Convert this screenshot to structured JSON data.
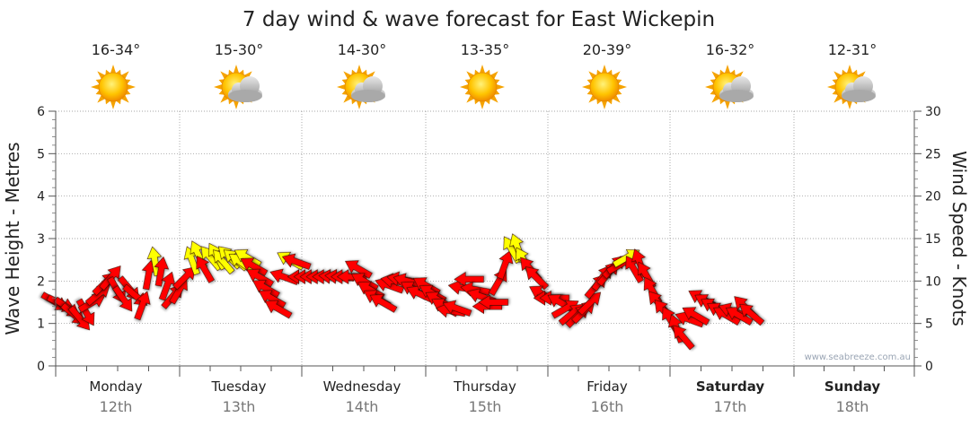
{
  "chart_data": {
    "type": "line",
    "title": "7 day wind & wave forecast for East Wickepin",
    "ylabel_left": "Wave Height - Metres",
    "ylabel_right": "Wind Speed - Knots",
    "ylim_left": [
      0,
      6
    ],
    "ylim_right": [
      0,
      30
    ],
    "yticks_left": [
      "0",
      "1",
      "2",
      "3",
      "4",
      "5",
      "6"
    ],
    "yticks_right": [
      "0",
      "5",
      "10",
      "15",
      "20",
      "25",
      "30"
    ],
    "watermark": "www.seabreeze.com.au",
    "days": [
      {
        "name": "Monday",
        "date": "12th",
        "temp": "16-34°",
        "icon": "sun-icon",
        "bold": false
      },
      {
        "name": "Tuesday",
        "date": "13th",
        "temp": "15-30°",
        "icon": "partly-cloudy-icon",
        "bold": false
      },
      {
        "name": "Wednesday",
        "date": "14th",
        "temp": "14-30°",
        "icon": "partly-cloudy-icon",
        "bold": false
      },
      {
        "name": "Thursday",
        "date": "15th",
        "temp": "13-35°",
        "icon": "sun-icon",
        "bold": false
      },
      {
        "name": "Friday",
        "date": "16th",
        "temp": "20-39°",
        "icon": "sun-icon",
        "bold": false
      },
      {
        "name": "Saturday",
        "date": "17th",
        "temp": "16-32°",
        "icon": "partly-cloudy-icon",
        "bold": true
      },
      {
        "name": "Sunday",
        "date": "18th",
        "temp": "12-31°",
        "icon": "partly-cloudy-icon",
        "bold": true
      }
    ],
    "series": [
      {
        "name": "Wind Speed - Knots",
        "color_strong": "#ff0000",
        "color_light": "#ffff00",
        "values": [
          [
            0,
            7.5,
            120
          ],
          [
            0.05,
            7.3,
            115
          ],
          [
            0.1,
            6.8,
            125
          ],
          [
            0.15,
            6.0,
            130
          ],
          [
            0.2,
            5.5,
            140
          ],
          [
            0.25,
            6.2,
            150
          ],
          [
            0.3,
            7.5,
            60
          ],
          [
            0.35,
            8.5,
            50
          ],
          [
            0.4,
            9.8,
            45
          ],
          [
            0.45,
            10.5,
            40
          ],
          [
            0.5,
            8.8,
            150
          ],
          [
            0.55,
            7.8,
            145
          ],
          [
            0.6,
            9.0,
            140
          ],
          [
            0.65,
            8.2,
            130
          ],
          [
            0.7,
            7.2,
            20
          ],
          [
            0.75,
            10.8,
            10
          ],
          [
            0.8,
            12.4,
            350
          ],
          [
            0.85,
            11.2,
            10
          ],
          [
            0.9,
            9.5,
            20
          ],
          [
            0.95,
            8.3,
            40
          ],
          [
            1.0,
            9.0,
            30
          ],
          [
            1.05,
            10.5,
            45
          ],
          [
            1.1,
            12.5,
            340
          ],
          [
            1.15,
            13.2,
            335
          ],
          [
            1.2,
            11.5,
            330
          ],
          [
            1.25,
            12.8,
            320
          ],
          [
            1.3,
            13.0,
            330
          ],
          [
            1.35,
            12.4,
            320
          ],
          [
            1.4,
            12.9,
            315
          ],
          [
            1.45,
            12.6,
            310
          ],
          [
            1.5,
            12.2,
            305
          ],
          [
            1.55,
            12.8,
            300
          ],
          [
            1.6,
            11.8,
            300
          ],
          [
            1.65,
            10.5,
            300
          ],
          [
            1.7,
            9.2,
            300
          ],
          [
            1.75,
            8.0,
            300
          ],
          [
            1.8,
            6.8,
            300
          ],
          [
            1.85,
            10.5,
            290
          ],
          [
            1.9,
            12.5,
            300
          ],
          [
            1.95,
            12.3,
            290
          ],
          [
            2.0,
            10.5,
            270
          ],
          [
            2.05,
            10.5,
            270
          ],
          [
            2.1,
            10.5,
            270
          ],
          [
            2.15,
            10.5,
            270
          ],
          [
            2.2,
            10.5,
            270
          ],
          [
            2.25,
            10.5,
            275
          ],
          [
            2.3,
            10.5,
            275
          ],
          [
            2.35,
            10.5,
            270
          ],
          [
            2.4,
            10.5,
            270
          ],
          [
            2.45,
            11.5,
            300
          ],
          [
            2.5,
            10.0,
            300
          ],
          [
            2.55,
            9.0,
            300
          ],
          [
            2.6,
            8.0,
            300
          ],
          [
            2.65,
            7.5,
            300
          ],
          [
            2.7,
            9.5,
            290
          ],
          [
            2.75,
            10.0,
            280
          ],
          [
            2.8,
            10.2,
            280
          ],
          [
            2.85,
            10.0,
            285
          ],
          [
            2.9,
            9.0,
            300
          ],
          [
            2.95,
            8.5,
            295
          ],
          [
            3.0,
            9.5,
            300
          ],
          [
            3.05,
            8.6,
            300
          ],
          [
            3.1,
            7.8,
            300
          ],
          [
            3.15,
            7.0,
            300
          ],
          [
            3.2,
            6.5,
            280
          ],
          [
            3.25,
            6.8,
            290
          ],
          [
            3.3,
            9.2,
            280
          ],
          [
            3.35,
            10.2,
            270
          ],
          [
            3.4,
            9.0,
            280
          ],
          [
            3.45,
            8.2,
            290
          ],
          [
            3.5,
            7.0,
            270
          ],
          [
            3.55,
            7.5,
            270
          ],
          [
            3.6,
            10.0,
            30
          ],
          [
            3.65,
            12.0,
            20
          ],
          [
            3.7,
            13.8,
            330
          ],
          [
            3.75,
            14.0,
            340
          ],
          [
            3.8,
            12.5,
            330
          ],
          [
            3.85,
            11.5,
            320
          ],
          [
            3.9,
            10.5,
            315
          ],
          [
            3.95,
            8.5,
            300
          ],
          [
            4.0,
            8.0,
            270
          ],
          [
            4.05,
            8.0,
            270
          ],
          [
            4.1,
            7.5,
            300
          ],
          [
            4.15,
            6.8,
            60
          ],
          [
            4.2,
            6.2,
            50
          ],
          [
            4.25,
            6.0,
            45
          ],
          [
            4.3,
            6.5,
            45
          ],
          [
            4.35,
            7.5,
            45
          ],
          [
            4.4,
            9.5,
            40
          ],
          [
            4.45,
            10.5,
            35
          ],
          [
            4.5,
            11.0,
            40
          ],
          [
            4.55,
            11.8,
            45
          ],
          [
            4.6,
            12.0,
            60
          ],
          [
            4.65,
            12.8,
            60
          ],
          [
            4.7,
            11.5,
            330
          ],
          [
            4.75,
            12.2,
            340
          ],
          [
            4.8,
            10.8,
            330
          ],
          [
            4.85,
            9.0,
            330
          ],
          [
            4.9,
            7.5,
            320
          ],
          [
            4.95,
            6.5,
            320
          ],
          [
            5.0,
            5.5,
            330
          ],
          [
            5.05,
            4.5,
            340
          ],
          [
            5.1,
            3.5,
            320
          ],
          [
            5.15,
            5.5,
            290
          ],
          [
            5.2,
            6.0,
            300
          ],
          [
            5.25,
            8.0,
            300
          ],
          [
            5.3,
            7.5,
            300
          ],
          [
            5.35,
            7.0,
            300
          ],
          [
            5.4,
            6.5,
            300
          ],
          [
            5.45,
            6.0,
            300
          ],
          [
            5.5,
            6.5,
            290
          ],
          [
            5.55,
            6.0,
            300
          ],
          [
            5.6,
            7.0,
            315
          ],
          [
            5.65,
            6.2,
            310
          ]
        ]
      }
    ]
  }
}
